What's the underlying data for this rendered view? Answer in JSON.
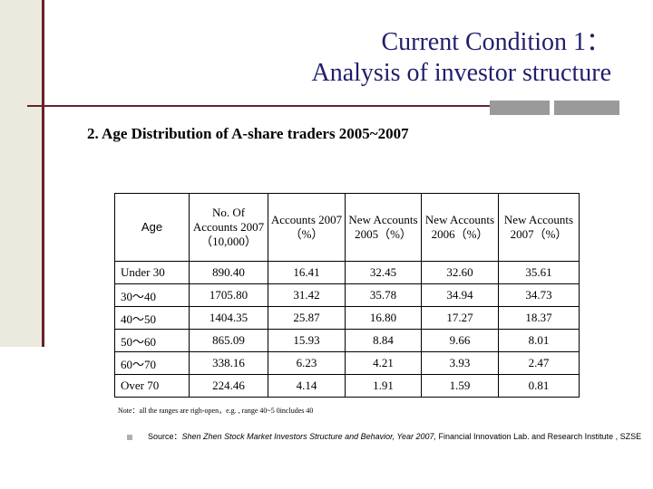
{
  "title": {
    "line1": "Current Condition 1：",
    "line2": "Analysis of investor structure"
  },
  "subtitle": "2. Age Distribution of A-share traders 2005~2007",
  "table": {
    "headers": [
      "Age",
      "No. Of Accounts 2007（10,000）",
      "Accounts 2007（%）",
      "New Accounts 2005（%）",
      "New Accounts 2006（%）",
      "New Accounts 2007（%）"
    ],
    "rows": [
      [
        "Under 30",
        "890.40",
        "16.41",
        "32.45",
        "32.60",
        "35.61"
      ],
      [
        "30～40",
        "1705.80",
        "31.42",
        "35.78",
        "34.94",
        "34.73"
      ],
      [
        "40～50",
        "1404.35",
        "25.87",
        "16.80",
        "17.27",
        "18.37"
      ],
      [
        "50～60",
        "865.09",
        "15.93",
        "8.84",
        "9.66",
        "8.01"
      ],
      [
        "60～70",
        "338.16",
        "6.23",
        "4.21",
        "3.93",
        "2.47"
      ],
      [
        "Over 70",
        "224.46",
        "4.14",
        "1.91",
        "1.59",
        "0.81"
      ]
    ]
  },
  "note": "Note：all the ranges are righ-open，e.g. , range 40~5 0includes 40",
  "source": {
    "label": "Source：",
    "italic": "Shen Zhen Stock Market Investors Structure and Behavior, Year 2007,",
    "rest": " Financial Innovation Lab. and Research Institute , SZSE"
  },
  "colors": {
    "title": "#1f1f6b",
    "accent_line": "#6b1f2e",
    "side_bar": "#ebeadf",
    "rule_block": "#9a9a9a"
  }
}
